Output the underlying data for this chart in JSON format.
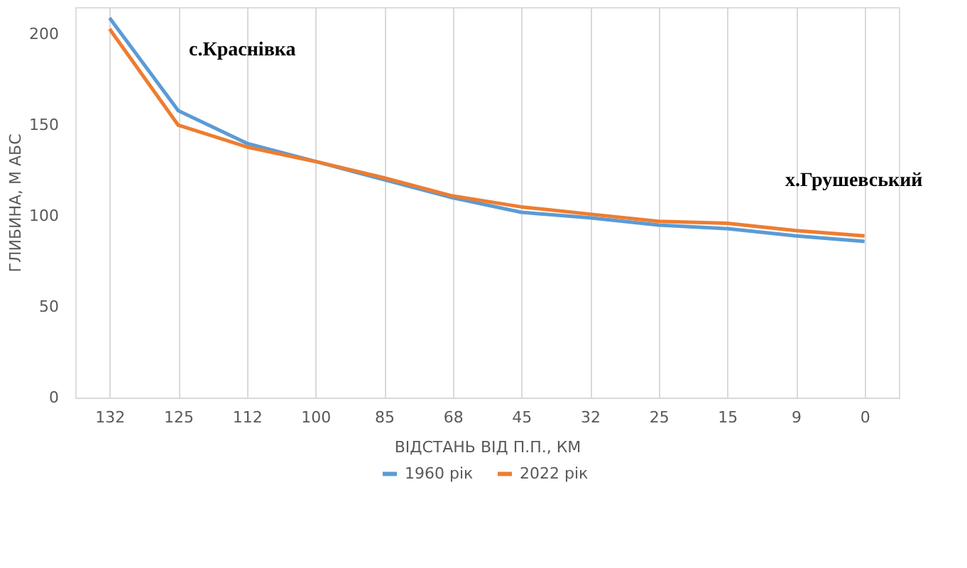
{
  "chart_data": {
    "type": "line",
    "categories": [
      "132",
      "125",
      "112",
      "100",
      "85",
      "68",
      "45",
      "32",
      "25",
      "15",
      "9",
      "0"
    ],
    "series": [
      {
        "name": "1960 рік",
        "color": "#5b9bd5",
        "values": [
          209,
          158,
          140,
          130,
          120,
          110,
          102,
          99,
          95,
          93,
          89,
          86
        ]
      },
      {
        "name": "2022 рік",
        "color": "#ed7d31",
        "values": [
          203,
          150,
          138,
          130,
          121,
          111,
          105,
          101,
          97,
          96,
          92,
          89
        ]
      }
    ],
    "xlabel": "ВІДСТАНЬ ВІД П.П., КМ",
    "ylabel": "ГЛИБИНА, М  АБС",
    "ylim": [
      0,
      215
    ],
    "yticks": [
      0,
      50,
      100,
      150,
      200
    ],
    "grid": "x",
    "legend": "bottom",
    "marker": "none",
    "line_style": "solid",
    "annotations": [
      "с.Краснівка",
      "х.Грушевський"
    ]
  }
}
